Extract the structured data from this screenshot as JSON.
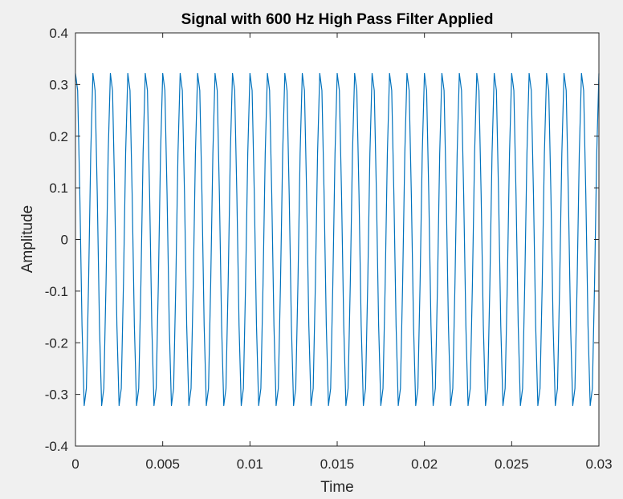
{
  "chart_data": {
    "type": "line",
    "title": "Signal with 600 Hz High Pass Filter Applied",
    "xlabel": "Time",
    "ylabel": "Amplitude",
    "xlim": [
      0,
      0.03
    ],
    "ylim": [
      -0.4,
      0.4
    ],
    "x_ticks": [
      "0",
      "0.005",
      "0.01",
      "0.015",
      "0.02",
      "0.025",
      "0.03"
    ],
    "y_ticks": [
      "-0.4",
      "-0.3",
      "-0.2",
      "-0.1",
      "0",
      "0.1",
      "0.2",
      "0.3",
      "0.4"
    ],
    "grid": false,
    "legend": "none",
    "series": [
      {
        "frequency_hz": 1000,
        "amplitude": 0.333,
        "phase_deg": 75,
        "sample_rate_hz": 8000,
        "x_range": [
          0,
          0.03
        ],
        "color": "#0072BD"
      }
    ]
  }
}
